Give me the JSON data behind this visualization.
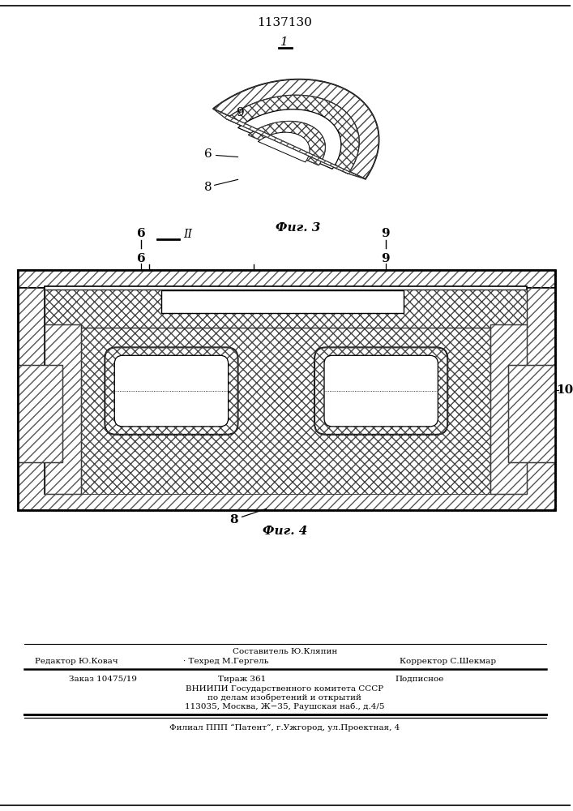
{
  "patent_number": "1137130",
  "fig1_label": "1",
  "fig3_label": "Фиг. 3",
  "fig4_label": "Фиг. 4",
  "label_II": "II",
  "label_6a": "6",
  "label_9a": "9",
  "label_8a": "8",
  "label_6b": "6",
  "label_9b": "9",
  "label_8b": "8",
  "label_10": "10",
  "footer_sestavitel": "Составитель Ю.Кляпин",
  "footer_redaktor": "Редактор Ю.Ковач",
  "footer_tehred": "Техред М.Гергель",
  "footer_korrektor": "Корректор С.Шекмар",
  "footer_zakaz": "Заказ 10475/19",
  "footer_tirazh": "Тираж 361",
  "footer_podpisnoe": "Подписное",
  "footer_vniipи": "ВНИИПИ Государственного комитета СССР",
  "footer_po_delam": "по делам изобретений и открытий",
  "footer_address": "113035, Москва, Ж−35, Раушская наб., д.4/5",
  "footer_filial": "Филиал ППП “Патент”, г.Ужгород, ул.Проектная, 4",
  "bg_color": "#ffffff",
  "line_color": "#000000"
}
